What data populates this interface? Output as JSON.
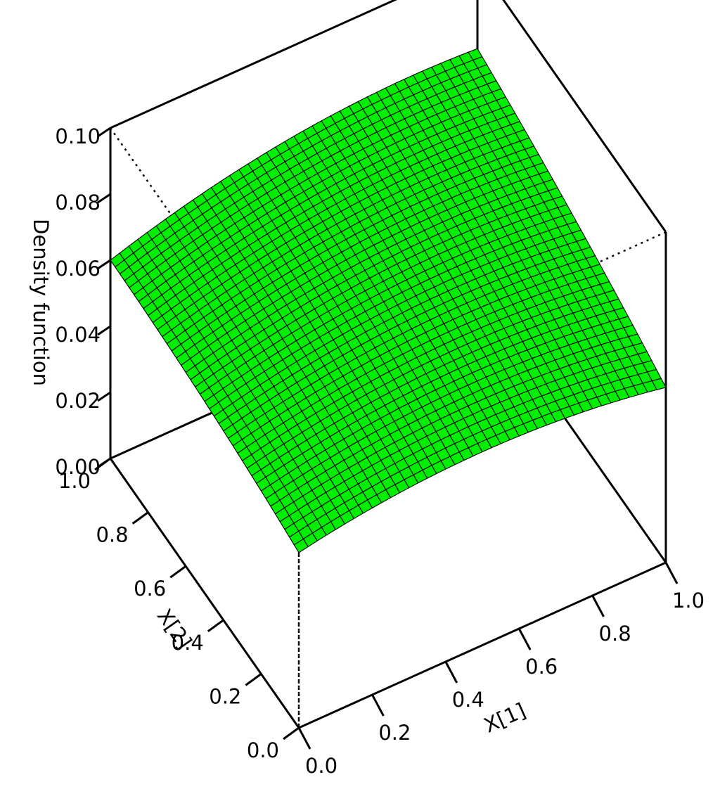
{
  "chart_data": {
    "type": "surface",
    "title": "",
    "xlabel": "X[1]",
    "ylabel": "X[2]",
    "zlabel": "Density function",
    "xlim": [
      0.0,
      1.0
    ],
    "ylim": [
      0.0,
      1.0
    ],
    "zlim": [
      0.0,
      0.1
    ],
    "x_ticks": [
      "0.0",
      "0.2",
      "0.4",
      "0.6",
      "0.8",
      "1.0"
    ],
    "y_ticks": [
      "0.0",
      "0.2",
      "0.4",
      "0.6",
      "0.8",
      "1.0"
    ],
    "z_ticks": [
      "0.00",
      "0.02",
      "0.04",
      "0.06",
      "0.08",
      "0.10"
    ],
    "surface_corners": [
      {
        "x": 0.0,
        "y": 0.0,
        "z": 0.053
      },
      {
        "x": 1.0,
        "y": 0.0,
        "z": 0.053
      },
      {
        "x": 0.0,
        "y": 1.0,
        "z": 0.06
      },
      {
        "x": 1.0,
        "y": 1.0,
        "z": 0.074
      }
    ],
    "surface_peak": {
      "x": 0.75,
      "y": 1.0,
      "z": 0.078
    },
    "surface_color": "#00ee00",
    "mesh_color": "#000000",
    "grid": 40,
    "box": true
  }
}
